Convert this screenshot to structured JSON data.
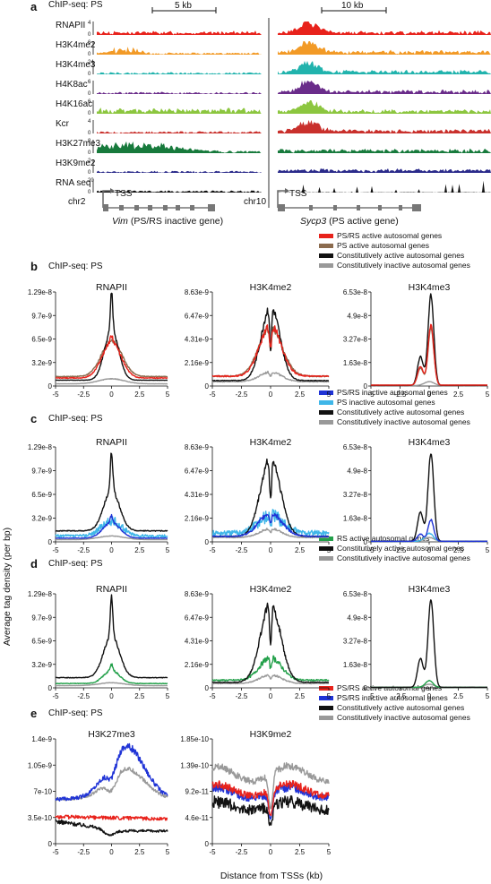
{
  "panels": {
    "a": {
      "letter": "a",
      "heading": "ChIP-seq: PS",
      "scalebars": [
        "5 kb",
        "10 kb"
      ],
      "tracks": [
        {
          "name": "RNAPII",
          "max": "4",
          "color": "#e8221b"
        },
        {
          "name": "H3K4me2",
          "max": "6",
          "color": "#f29a26"
        },
        {
          "name": "H3K4me3",
          "max": "24",
          "color": "#21b3ad"
        },
        {
          "name": "H4K8ac",
          "max": "6",
          "color": "#6a2c8a"
        },
        {
          "name": "H4K16ac",
          "max": "6",
          "color": "#8cc63f"
        },
        {
          "name": "Kcr",
          "max": "4",
          "color": "#c9302c"
        },
        {
          "name": "H3K27me3",
          "max": "8",
          "color": "#177a3c"
        },
        {
          "name": "H3K9me2",
          "max": "2",
          "color": "#2a2a8a"
        },
        {
          "name": "RNA seq",
          "max": "20",
          "color": "#111111"
        }
      ],
      "loci": [
        {
          "chrom": "chr2",
          "tss": "TSS",
          "gene": "Vim",
          "desc": " (PS/RS inactive gene)"
        },
        {
          "chrom": "chr10",
          "tss": "TSS",
          "gene": "Sycp3",
          "desc": " (PS active gene)"
        }
      ]
    },
    "b": {
      "letter": "b",
      "heading": "ChIP-seq: PS",
      "legend": [
        {
          "label": "PS/RS active autosomal genes",
          "color": "#e8221b"
        },
        {
          "label": "PS active autosomal genes",
          "color": "#8b6b4e"
        },
        {
          "label": "Constitutively active autosomal genes",
          "color": "#111111"
        },
        {
          "label": "Constitutively inactive autosomal genes",
          "color": "#999999"
        }
      ]
    },
    "c": {
      "letter": "c",
      "heading": "ChIP-seq: PS",
      "legend": [
        {
          "label": "PS/RS inactive autosomal genes",
          "color": "#1f33d6"
        },
        {
          "label": "PS inactive autosomal genes",
          "color": "#3fb6e8"
        },
        {
          "label": "Constitutively active autosomal genes",
          "color": "#111111"
        },
        {
          "label": "Constitutively inactive autosomal genes",
          "color": "#999999"
        }
      ]
    },
    "d": {
      "letter": "d",
      "heading": "ChIP-seq: PS",
      "legend": [
        {
          "label": "RS active autosomal genes",
          "color": "#23a04a"
        },
        {
          "label": "Constitutively active autosomal genes",
          "color": "#111111"
        },
        {
          "label": "Constitutively inactive autosomal genes",
          "color": "#999999"
        }
      ]
    },
    "e": {
      "letter": "e",
      "heading": "ChIP-seq: PS",
      "legend": [
        {
          "label": "PS/RS active autosomal genes",
          "color": "#e8221b"
        },
        {
          "label": "PS/RS inactive autosomal genes",
          "color": "#1f33d6"
        },
        {
          "label": "Constitutively active autosomal genes",
          "color": "#111111"
        },
        {
          "label": "Constitutively inactive autosomal genes",
          "color": "#999999"
        }
      ]
    }
  },
  "ylabel": "Average tag density (per bp)",
  "xlabel": "Distance from TSSs (kb)",
  "chart_data": [
    {
      "panel": "b",
      "title": "RNAPII",
      "type": "line",
      "xlim": [
        -5,
        5
      ],
      "xticks": [
        "-5",
        "-2.5",
        "0",
        "2.5",
        "5"
      ],
      "yticks": [
        "0",
        "3.2e-9",
        "6.5e-9",
        "9.7e-9",
        "1.29e-8"
      ],
      "ylim": [
        0,
        1.29e-08
      ],
      "series": [
        {
          "name": "Constitutively inactive autosomal genes",
          "color": "#999999",
          "peak": 1e-09,
          "base": 3e-10,
          "width": 1.6,
          "sharp": 0,
          "noise": 0.05
        },
        {
          "name": "PS active autosomal genes",
          "color": "#8b6b4e",
          "peak": 6.2e-09,
          "base": 1.3e-09,
          "width": 1.3,
          "sharp": 0,
          "noise": 0.04
        },
        {
          "name": "Constitutively active autosomal genes",
          "color": "#111111",
          "peak": 7.6e-09,
          "base": 8e-10,
          "width": 0.9,
          "sharp": 5.2e-09,
          "noise": 0.03
        },
        {
          "name": "PS/RS active autosomal genes",
          "color": "#e8221b",
          "peak": 6e-09,
          "base": 1.1e-09,
          "width": 1.2,
          "sharp": 1e-09,
          "noise": 0.05
        }
      ]
    },
    {
      "panel": "b",
      "title": "H3K4me2",
      "type": "line",
      "xlim": [
        -5,
        5
      ],
      "xticks": [
        "-5",
        "-2.5",
        "0",
        "2.5",
        "5"
      ],
      "yticks": [
        "0",
        "2.16e-9",
        "4.31e-9",
        "6.47e-9",
        "8.63e-9"
      ],
      "ylim": [
        0,
        8.63e-09
      ],
      "series": [
        {
          "name": "Constitutively inactive autosomal genes",
          "color": "#999999",
          "peak": 1.3e-09,
          "base": 4e-10,
          "width": 1.3,
          "sharp": 0,
          "noise": 0.08,
          "dip": 0.3
        },
        {
          "name": "PS active autosomal genes",
          "color": "#8b6b4e",
          "peak": 5.4e-09,
          "base": 9e-10,
          "width": 1.4,
          "sharp": 0,
          "noise": 0.06,
          "dip": 0.4
        },
        {
          "name": "Constitutively active autosomal genes",
          "color": "#111111",
          "peak": 7.4e-09,
          "base": 5e-10,
          "width": 1.1,
          "sharp": 0,
          "noise": 0.06,
          "dip": 0.55
        },
        {
          "name": "PS/RS active autosomal genes",
          "color": "#e8221b",
          "peak": 5.6e-09,
          "base": 9e-10,
          "width": 1.3,
          "sharp": 0,
          "noise": 0.07,
          "dip": 0.4
        }
      ]
    },
    {
      "panel": "b",
      "title": "H3K4me3",
      "type": "line",
      "xlim": [
        -5,
        5
      ],
      "xticks": [
        "-5",
        "-2.5",
        "0",
        "2.5",
        "5"
      ],
      "yticks": [
        "0",
        "1.63e-8",
        "3.27e-8",
        "4.9e-8",
        "6.53e-8"
      ],
      "ylim": [
        0,
        6.53e-08
      ],
      "series": [
        {
          "name": "Constitutively inactive autosomal genes",
          "color": "#999999",
          "peak": 3e-09,
          "base": 3e-10,
          "width": 0.6,
          "sharp": 0,
          "noise": 0.05
        },
        {
          "name": "PS active autosomal genes",
          "color": "#8b6b4e",
          "peak": 4e-08,
          "base": 6e-10,
          "width": 0.3,
          "sharp": 0,
          "noise": 0.02,
          "shoulder": 1.2e-08
        },
        {
          "name": "Constitutively active autosomal genes",
          "color": "#111111",
          "peak": 6.3e-08,
          "base": 4e-10,
          "width": 0.3,
          "sharp": 0,
          "noise": 0.02,
          "shoulder": 2e-08
        },
        {
          "name": "PS/RS active autosomal genes",
          "color": "#e8221b",
          "peak": 4.2e-08,
          "base": 6e-10,
          "width": 0.3,
          "sharp": 0,
          "noise": 0.02,
          "shoulder": 1.3e-08
        }
      ]
    },
    {
      "panel": "c",
      "title": "RNAPII",
      "type": "line",
      "xlim": [
        -5,
        5
      ],
      "xticks": [
        "-5",
        "-2.5",
        "0",
        "2.5",
        "5"
      ],
      "yticks": [
        "0",
        "3.2e-9",
        "6.5e-9",
        "9.7e-9",
        "1.29e-8"
      ],
      "ylim": [
        0,
        1.29e-08
      ],
      "series": [
        {
          "name": "Constitutively inactive autosomal genes",
          "color": "#999999",
          "peak": 8e-10,
          "base": 3e-10,
          "width": 1.6,
          "sharp": 0,
          "noise": 0.05
        },
        {
          "name": "PS inactive autosomal genes",
          "color": "#3fb6e8",
          "peak": 2.8e-09,
          "base": 8e-10,
          "width": 1.3,
          "sharp": 0,
          "noise": 0.25
        },
        {
          "name": "Constitutively active autosomal genes",
          "color": "#111111",
          "peak": 7e-09,
          "base": 1.5e-09,
          "width": 1.0,
          "sharp": 5.4e-09,
          "noise": 0.04
        },
        {
          "name": "PS/RS inactive autosomal genes",
          "color": "#1f33d6",
          "peak": 2.6e-09,
          "base": 5e-10,
          "width": 1.1,
          "sharp": 1e-09,
          "noise": 0.06
        }
      ]
    },
    {
      "panel": "c",
      "title": "H3K4me2",
      "type": "line",
      "xlim": [
        -5,
        5
      ],
      "xticks": [
        "-5",
        "-2.5",
        "0",
        "2.5",
        "5"
      ],
      "yticks": [
        "0",
        "2.16e-9",
        "4.31e-9",
        "6.47e-9",
        "8.63e-9"
      ],
      "ylim": [
        0,
        8.63e-09
      ],
      "series": [
        {
          "name": "Constitutively inactive autosomal genes",
          "color": "#999999",
          "peak": 1.2e-09,
          "base": 4e-10,
          "width": 1.3,
          "sharp": 0,
          "noise": 0.08,
          "dip": 0.3
        },
        {
          "name": "PS inactive autosomal genes",
          "color": "#3fb6e8",
          "peak": 2.4e-09,
          "base": 8e-10,
          "width": 1.5,
          "sharp": 0,
          "noise": 0.3,
          "dip": 0.3
        },
        {
          "name": "Constitutively active autosomal genes",
          "color": "#111111",
          "peak": 7.6e-09,
          "base": 5e-10,
          "width": 1.2,
          "sharp": 0,
          "noise": 0.06,
          "dip": 0.5
        },
        {
          "name": "PS/RS inactive autosomal genes",
          "color": "#1f33d6",
          "peak": 2.6e-09,
          "base": 5e-10,
          "width": 1.4,
          "sharp": 0,
          "noise": 0.1,
          "dip": 0.35
        }
      ]
    },
    {
      "panel": "c",
      "title": "H3K4me3",
      "type": "line",
      "xlim": [
        -5,
        5
      ],
      "xticks": [
        "-5",
        "-2.5",
        "0",
        "2.5",
        "5"
      ],
      "yticks": [
        "0",
        "1.63e-8",
        "3.27e-8",
        "4.9e-8",
        "6.53e-8"
      ],
      "ylim": [
        0,
        6.53e-08
      ],
      "series": [
        {
          "name": "Constitutively inactive autosomal genes",
          "color": "#999999",
          "peak": 3e-09,
          "base": 3e-10,
          "width": 0.6,
          "sharp": 0,
          "noise": 0.05
        },
        {
          "name": "PS inactive autosomal genes",
          "color": "#3fb6e8",
          "peak": 6e-09,
          "base": 4e-10,
          "width": 0.5,
          "sharp": 0,
          "noise": 0.08
        },
        {
          "name": "Constitutively active autosomal genes",
          "color": "#111111",
          "peak": 6.1e-08,
          "base": 4e-10,
          "width": 0.3,
          "sharp": 0,
          "noise": 0.02,
          "shoulder": 2e-08
        },
        {
          "name": "PS/RS inactive autosomal genes",
          "color": "#1f33d6",
          "peak": 1.5e-08,
          "base": 4e-10,
          "width": 0.35,
          "sharp": 0,
          "noise": 0.04,
          "shoulder": 5e-09
        }
      ]
    },
    {
      "panel": "d",
      "title": "RNAPII",
      "type": "line",
      "xlim": [
        -5,
        5
      ],
      "xticks": [
        "-5",
        "-2.5",
        "0",
        "2.5",
        "5"
      ],
      "yticks": [
        "0",
        "3.2e-9",
        "6.5e-9",
        "9.7e-9",
        "1.29e-8"
      ],
      "ylim": [
        0,
        1.29e-08
      ],
      "series": [
        {
          "name": "Constitutively inactive autosomal genes",
          "color": "#999999",
          "peak": 7e-10,
          "base": 3e-10,
          "width": 1.6,
          "sharp": 0,
          "noise": 0.05
        },
        {
          "name": "RS active autosomal genes",
          "color": "#23a04a",
          "peak": 2.4e-09,
          "base": 6e-10,
          "width": 1.0,
          "sharp": 8e-10,
          "noise": 0.06
        },
        {
          "name": "Constitutively active autosomal genes",
          "color": "#111111",
          "peak": 7.2e-09,
          "base": 1.4e-09,
          "width": 1.0,
          "sharp": 5.4e-09,
          "noise": 0.03
        }
      ]
    },
    {
      "panel": "d",
      "title": "H3K4me2",
      "type": "line",
      "xlim": [
        -5,
        5
      ],
      "xticks": [
        "-5",
        "-2.5",
        "0",
        "2.5",
        "5"
      ],
      "yticks": [
        "0",
        "2.16e-9",
        "4.31e-9",
        "6.47e-9",
        "8.63e-9"
      ],
      "ylim": [
        0,
        8.63e-09
      ],
      "series": [
        {
          "name": "Constitutively inactive autosomal genes",
          "color": "#999999",
          "peak": 1.2e-09,
          "base": 4e-10,
          "width": 1.3,
          "sharp": 0,
          "noise": 0.08,
          "dip": 0.3
        },
        {
          "name": "RS active autosomal genes",
          "color": "#23a04a",
          "peak": 2.8e-09,
          "base": 7e-10,
          "width": 1.3,
          "sharp": 0,
          "noise": 0.1,
          "dip": 0.35
        },
        {
          "name": "Constitutively active autosomal genes",
          "color": "#111111",
          "peak": 7.8e-09,
          "base": 5e-10,
          "width": 1.2,
          "sharp": 0,
          "noise": 0.06,
          "dip": 0.5
        }
      ]
    },
    {
      "panel": "d",
      "title": "H3K4me3",
      "type": "line",
      "xlim": [
        -5,
        5
      ],
      "xticks": [
        "-5",
        "-2.5",
        "0",
        "2.5",
        "5"
      ],
      "yticks": [
        "0",
        "1.63e-8",
        "3.27e-8",
        "4.9e-8",
        "6.53e-8"
      ],
      "ylim": [
        0,
        6.53e-08
      ],
      "series": [
        {
          "name": "Constitutively inactive autosomal genes",
          "color": "#999999",
          "peak": 2.5e-09,
          "base": 3e-10,
          "width": 0.6,
          "sharp": 0,
          "noise": 0.05
        },
        {
          "name": "RS active autosomal genes",
          "color": "#23a04a",
          "peak": 5e-09,
          "base": 4e-10,
          "width": 0.45,
          "sharp": 0,
          "noise": 0.05
        },
        {
          "name": "Constitutively active autosomal genes",
          "color": "#111111",
          "peak": 6.1e-08,
          "base": 4e-10,
          "width": 0.3,
          "sharp": 0,
          "noise": 0.02,
          "shoulder": 2e-08
        }
      ]
    },
    {
      "panel": "e",
      "title": "H3K27me3",
      "type": "line",
      "xlim": [
        -5,
        5
      ],
      "xticks": [
        "-5",
        "-2.5",
        "0",
        "2.5",
        "5"
      ],
      "yticks": [
        "0",
        "3.5e-10",
        "7e-10",
        "1.05e-9",
        "1.4e-9"
      ],
      "ylim": [
        0,
        1.4e-09
      ],
      "series": [
        {
          "name": "Constitutively inactive autosomal genes",
          "color": "#999999",
          "shape": "k27",
          "peak": 1e-09,
          "base": 7e-10,
          "noise": 0.03
        },
        {
          "name": "PS/RS inactive autosomal genes",
          "color": "#1f33d6",
          "shape": "k27",
          "peak": 1.3e-09,
          "base": 7e-10,
          "noise": 0.04
        },
        {
          "name": "PS/RS active autosomal genes",
          "color": "#e8221b",
          "shape": "flat",
          "peak": 3.6e-10,
          "base": 3.3e-10,
          "noise": 0.07
        },
        {
          "name": "Constitutively active autosomal genes",
          "color": "#111111",
          "shape": "flatdip",
          "peak": 3e-10,
          "base": 1.7e-10,
          "noise": 0.1
        }
      ]
    },
    {
      "panel": "e",
      "title": "H3K9me2",
      "type": "line",
      "xlim": [
        -5,
        5
      ],
      "xticks": [
        "-5",
        "-2.5",
        "0",
        "2.5",
        "5"
      ],
      "yticks": [
        "0",
        "4.6e-11",
        "9.2e-11",
        "1.39e-10",
        "1.85e-10"
      ],
      "ylim": [
        0,
        1.85e-10
      ],
      "series": [
        {
          "name": "Constitutively inactive autosomal genes",
          "color": "#999999",
          "shape": "k9",
          "peak": 1.45e-10,
          "base": 1.3e-10,
          "noise": 0.05
        },
        {
          "name": "Constitutively active autosomal genes",
          "color": "#111111",
          "shape": "k9",
          "peak": 9e-11,
          "base": 7e-11,
          "noise": 0.15
        },
        {
          "name": "PS/RS inactive autosomal genes",
          "color": "#1f33d6",
          "shape": "k9",
          "peak": 1.1e-10,
          "base": 9.5e-11,
          "noise": 0.08
        },
        {
          "name": "PS/RS active autosomal genes",
          "color": "#e8221b",
          "shape": "k9",
          "peak": 1.15e-10,
          "base": 1e-10,
          "noise": 0.07
        }
      ]
    }
  ]
}
